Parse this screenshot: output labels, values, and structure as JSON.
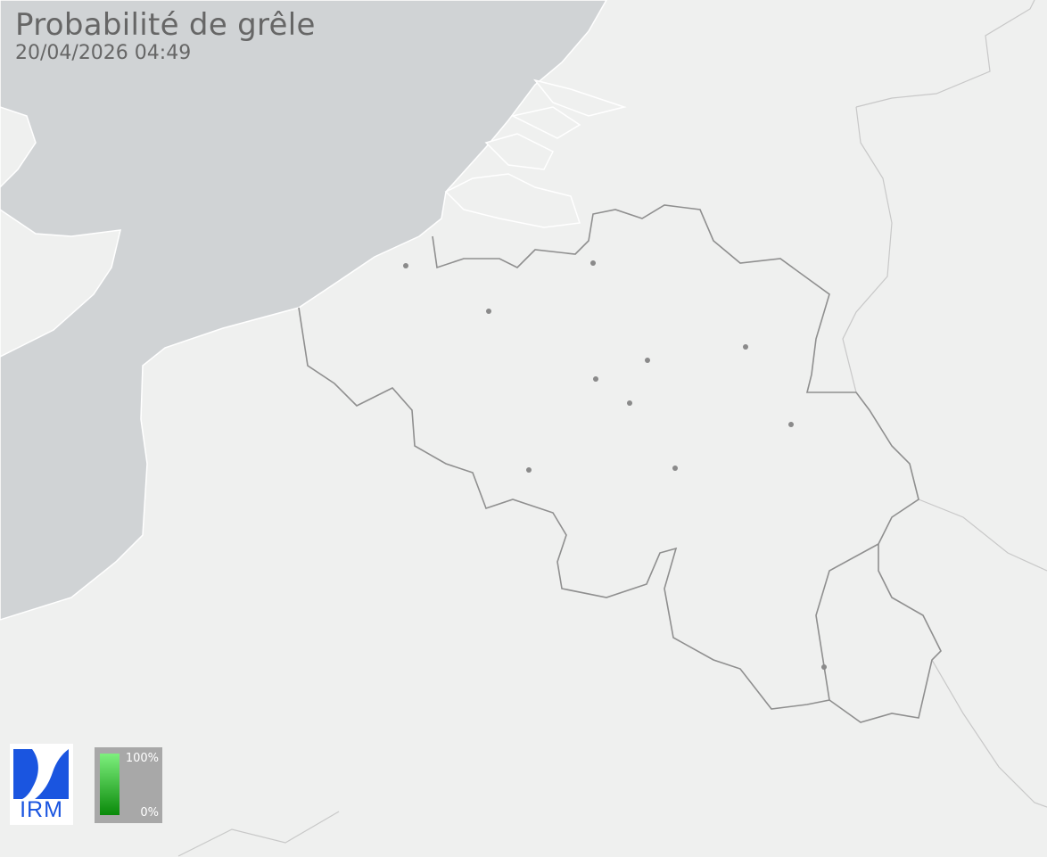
{
  "header": {
    "title": "Probabilité de grêle",
    "timestamp": "20/04/2026 04:49"
  },
  "legend": {
    "max_label": "100%",
    "min_label": "0%",
    "color_high": "#7ef07e",
    "color_low": "#0a8a0a"
  },
  "logo": {
    "text": "IRM",
    "color": "#1a55e0"
  },
  "map": {
    "sea_color": "#d0d3d5",
    "land_color": "#eff0ef",
    "border_color": "#8f8f8f",
    "city_markers": 11
  }
}
